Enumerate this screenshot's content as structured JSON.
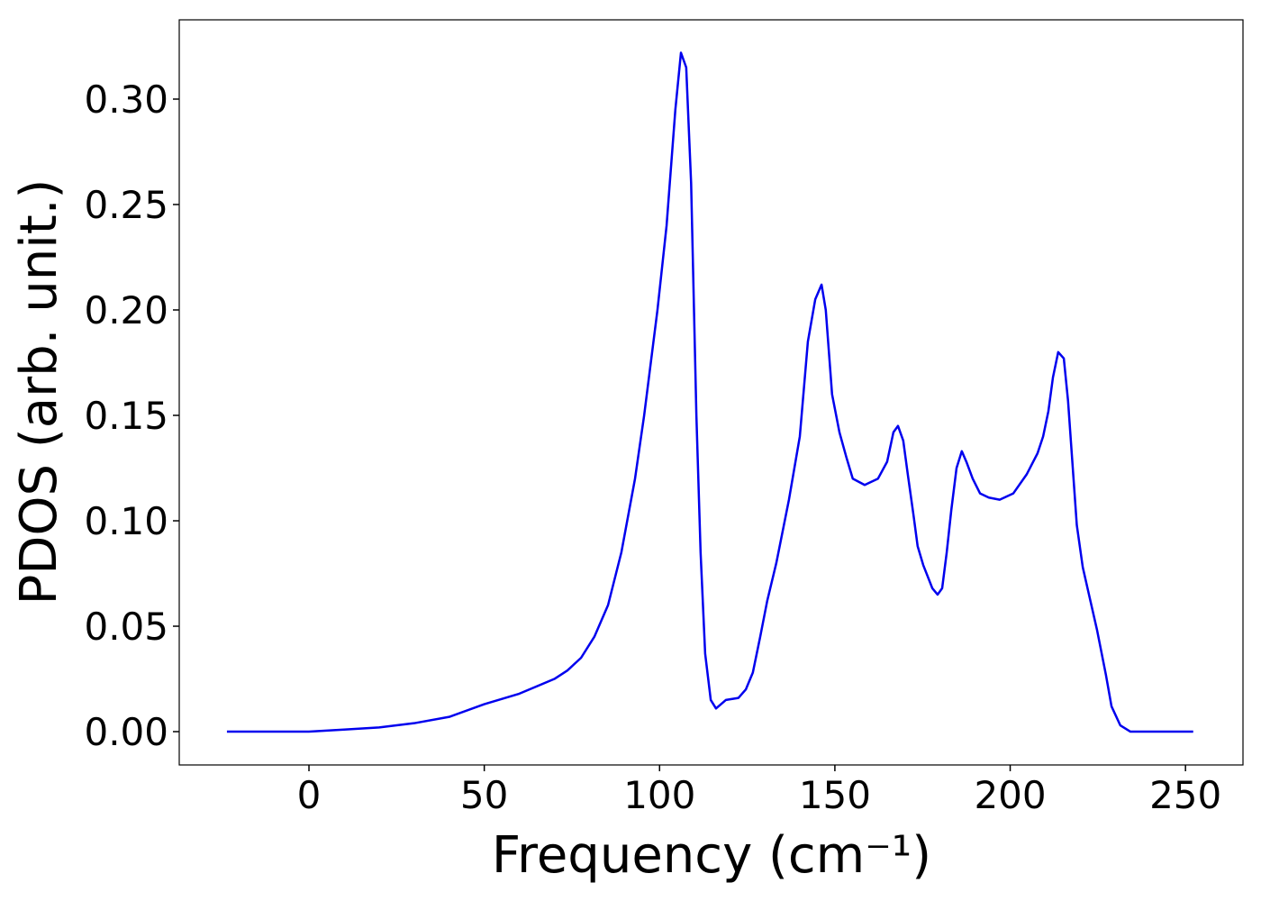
{
  "chart_data": {
    "type": "line",
    "x_label": "Frequency (cm⁻¹)",
    "y_label": "PDOS (arb. unit.)",
    "xlim": [
      -37,
      266.4
    ],
    "ylim": [
      -0.0158,
      0.3376
    ],
    "xticks": [
      0,
      50,
      100,
      150,
      200,
      250
    ],
    "yticks": [
      {
        "value": 0,
        "label": "0.00"
      },
      {
        "value": 0.05,
        "label": "0.05"
      },
      {
        "value": 0.1,
        "label": "0.10"
      },
      {
        "value": 0.15,
        "label": "0.15"
      },
      {
        "value": 0.2,
        "label": "0.20"
      },
      {
        "value": 0.25,
        "label": "0.25"
      },
      {
        "value": 0.3,
        "label": "0.30"
      }
    ],
    "grid": false,
    "x": [
      -23.4,
      0,
      10,
      20,
      30,
      40,
      50,
      60,
      70,
      73.7,
      77.6,
      81.4,
      85.3,
      89.1,
      93,
      95.6,
      99.4,
      102,
      104.5,
      106.1,
      107.6,
      109,
      110.5,
      111.7,
      113,
      114.6,
      116.1,
      118.9,
      122.5,
      124.6,
      126.6,
      128.7,
      130.7,
      133.3,
      136.9,
      140,
      142.3,
      144.4,
      146.2,
      147.4,
      149.2,
      151.3,
      153.3,
      155.1,
      158.5,
      162.3,
      164.9,
      166.7,
      168,
      169.5,
      170.8,
      172.4,
      173.6,
      175.2,
      177.8,
      179.3,
      180.6,
      181.9,
      183.2,
      184.7,
      186.2,
      187.5,
      189.3,
      191.4,
      193.9,
      197,
      200.9,
      204.7,
      207.8,
      209.4,
      210.9,
      212.2,
      213.7,
      215.3,
      216.5,
      219,
      220.7,
      222.2,
      224.8,
      227.3,
      228.9,
      231.4,
      234.3,
      252.2
    ],
    "series": [
      {
        "name": "PDOS",
        "color": "#0000ee",
        "values": [
          0,
          0,
          0.001,
          0.002,
          0.004,
          0.007,
          0.013,
          0.018,
          0.025,
          0.029,
          0.035,
          0.045,
          0.06,
          0.085,
          0.12,
          0.15,
          0.2,
          0.24,
          0.295,
          0.322,
          0.315,
          0.26,
          0.15,
          0.085,
          0.037,
          0.015,
          0.011,
          0.015,
          0.016,
          0.02,
          0.028,
          0.045,
          0.062,
          0.08,
          0.11,
          0.14,
          0.185,
          0.205,
          0.212,
          0.2,
          0.16,
          0.142,
          0.13,
          0.12,
          0.117,
          0.12,
          0.128,
          0.142,
          0.145,
          0.138,
          0.122,
          0.103,
          0.088,
          0.079,
          0.068,
          0.065,
          0.068,
          0.085,
          0.105,
          0.125,
          0.133,
          0.128,
          0.12,
          0.113,
          0.111,
          0.11,
          0.113,
          0.122,
          0.132,
          0.14,
          0.152,
          0.168,
          0.18,
          0.177,
          0.157,
          0.098,
          0.078,
          0.067,
          0.048,
          0.027,
          0.012,
          0.003,
          0,
          0
        ]
      }
    ]
  }
}
